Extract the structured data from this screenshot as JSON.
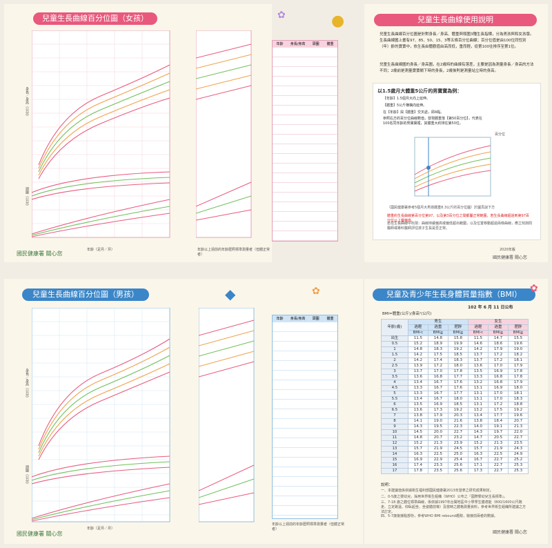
{
  "top_left": {
    "title": "兒童生長曲線百分位圖（女孩）",
    "axis_left_top": "身長／身高（公分）",
    "axis_left_bottom": "頭圍（公分）",
    "axis_left_weight": "體重（公斤）",
    "axis_bottom": "年齡（足月／月）",
    "table_headers": [
      "年齡",
      "身長/身高",
      "頭圍",
      "體重"
    ],
    "table_note": "年齡以上週前的年齡歷照標準測量者（但體正常者）",
    "footer": "國民健康署 關心您"
  },
  "top_right": {
    "title": "兒童生長曲線使用說明",
    "intro": "兒童生長曲線百分位圖是針對身長／身高、體重與頭圍3種生長指標，分為男孩與和女孩版。生長曲線圖上畫有97、85、50、15、3等五條百分位曲線；百分位值是由100位同性別（年）齡的寶寶中，依生長由體觀值由高而低，重而輕，從第100往排序至第1位。",
    "intro2": "兒童生長曲線圖的身長／身高圖，在2歲時的曲線有落差，主要是因為測量身長／身高的方法不同；2歲前是測量寶寶躺下時的身長，2歲後則是測量站立時的身高。",
    "example_title": "以1.5歲月大體重5公斤的男寶寶為例：",
    "steps": [
      "【年齡】1.5個月大向上延伸。",
      "【體重】5公斤横橫向延伸。",
      "在【年齡】與【體重】交叉處，即A點。",
      "參照右方的百分位曲線數值，發現體重落【第50百分位】，代表在100名同年齡的男寶寶裡，其體重大約排在第50位。"
    ],
    "chart_percentile_label": "百分位",
    "chart_percentiles": [
      "97",
      "85",
      "50",
      "15",
      "3"
    ],
    "chart_points": [
      "A",
      "B",
      "C",
      "D",
      "E",
      "F",
      "G"
    ],
    "chart_axis_bottom": "年齡（足月／月）",
    "chart_caption": "（國民健康署參考5個月大男孩體重8.3公斤的百分位圖）於圖頁說下方",
    "red_note": "體重約生長曲線第百分位第97、以及第3百分位之間都屬正常範圍，若生長曲線超過到第97百分位以上屬偏高。",
    "body_text": "若在生長曲線中出現：曲線持續偏高或偏低超出範圍，以及位置移動超過兩條曲線，應立刻詢問醫師或專科醫師評估孩子生長是否正常。",
    "bottom_tag": "2020年版",
    "footer": "國民健康署 關心您"
  },
  "bottom_left": {
    "title": "兒童生長曲線百分位圖（男孩）",
    "axis_left_top": "身長／身高（公分）",
    "axis_left_bottom": "頭圍（公分）",
    "axis_left_weight": "體重（公斤）",
    "axis_bottom": "年齡（足月／月）",
    "table_headers": [
      "年齡",
      "身長/身高",
      "頭圍",
      "體重"
    ],
    "table_note": "年齡以上週前的年齡歷照標準測量者（但體正常者）",
    "footer": "國民健康署 關心您"
  },
  "bottom_right": {
    "title": "兒童及青少年生長身體質量指數（BMI）",
    "date": "102 年 6 月 11 日公布",
    "formula": "BMI=體重(公斤)/身高²(公尺)",
    "col_boy": "男生",
    "col_girl": "女生",
    "subheads": [
      "過輕",
      "過重",
      "肥胖",
      "過輕",
      "過重",
      "肥胖"
    ],
    "subheads2": [
      "BMI<",
      "BMI≧",
      "BMI≧",
      "BMI<",
      "BMI≧",
      "BMI≧"
    ],
    "age_header": "年齡(歲)",
    "rows": [
      [
        "出生",
        "11.5",
        "14.8",
        "15.8",
        "11.5",
        "14.7",
        "15.5"
      ],
      [
        "0.5",
        "15.2",
        "18.9",
        "19.9",
        "14.6",
        "18.6",
        "19.6"
      ],
      [
        "1",
        "14.8",
        "18.3",
        "19.2",
        "14.2",
        "17.9",
        "19.0"
      ],
      [
        "1.5",
        "14.2",
        "17.5",
        "18.5",
        "13.7",
        "17.2",
        "18.2"
      ],
      [
        "2",
        "14.2",
        "17.4",
        "18.3",
        "13.7",
        "17.2",
        "18.1"
      ],
      [
        "2.5",
        "13.9",
        "17.2",
        "18.0",
        "13.6",
        "17.0",
        "17.9"
      ],
      [
        "3",
        "13.7",
        "17.0",
        "17.8",
        "13.5",
        "16.9",
        "17.8"
      ],
      [
        "3.5",
        "13.6",
        "16.8",
        "17.7",
        "13.3",
        "16.8",
        "17.8"
      ],
      [
        "4",
        "13.4",
        "16.7",
        "17.6",
        "13.2",
        "16.8",
        "17.9"
      ],
      [
        "4.5",
        "13.3",
        "16.7",
        "17.6",
        "13.1",
        "16.9",
        "18.0"
      ],
      [
        "5",
        "13.3",
        "16.7",
        "17.7",
        "13.1",
        "17.0",
        "18.1"
      ],
      [
        "5.5",
        "13.4",
        "16.7",
        "18.0",
        "13.1",
        "17.0",
        "18.3"
      ],
      [
        "6",
        "13.5",
        "16.9",
        "18.5",
        "13.1",
        "17.2",
        "18.8"
      ],
      [
        "6.5",
        "13.6",
        "17.3",
        "19.2",
        "13.2",
        "17.5",
        "19.2"
      ],
      [
        "7",
        "13.8",
        "17.9",
        "20.3",
        "13.4",
        "17.7",
        "19.6"
      ],
      [
        "8",
        "14.1",
        "19.0",
        "21.6",
        "13.8",
        "18.4",
        "20.7"
      ],
      [
        "9",
        "14.3",
        "19.5",
        "22.3",
        "14.0",
        "19.1",
        "21.3"
      ],
      [
        "10",
        "14.5",
        "20.0",
        "22.7",
        "14.3",
        "19.7",
        "22.0"
      ],
      [
        "11",
        "14.8",
        "20.7",
        "23.2",
        "14.7",
        "20.5",
        "22.7"
      ],
      [
        "12",
        "15.2",
        "21.3",
        "23.9",
        "15.2",
        "21.3",
        "23.5"
      ],
      [
        "13",
        "15.7",
        "21.9",
        "24.5",
        "15.7",
        "21.9",
        "24.3"
      ],
      [
        "14",
        "16.3",
        "22.5",
        "25.0",
        "16.3",
        "22.5",
        "24.9"
      ],
      [
        "15",
        "16.9",
        "22.9",
        "25.4",
        "16.7",
        "22.7",
        "25.2"
      ],
      [
        "16",
        "17.4",
        "23.3",
        "25.6",
        "17.1",
        "22.7",
        "25.3"
      ],
      [
        "17",
        "17.8",
        "23.5",
        "25.6",
        "17.3",
        "22.7",
        "25.3"
      ]
    ],
    "notes_title": "說明：",
    "notes": [
      "一、本建議值係依據衛生福利部國民健康署2013年發表之研究成果制定。",
      "二、0-5歲之嬰幼兒，採用世界衛生組織（WHO）公布之『國際嬰幼兒生長標準』。",
      "三、7-18 歲之體位標準曲線，係依據1997年台閩地區中小學學生體適能（800/1600公尺跑走、立定跳遠、仰臥起坐、坐姿體前彎）及當時之體格測量資料，參考世界衛生組織所建議之方法訂定。",
      "四、5-7歲銜接點部份，參考WHO BMI rebound趨勢，銜接前兩者的數據。"
    ],
    "footer": "國民健康署 關心您"
  }
}
